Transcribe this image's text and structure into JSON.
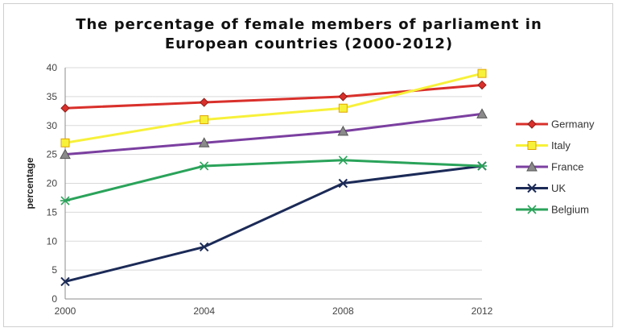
{
  "chart_data": {
    "type": "line",
    "title_line1": "The percentage of female members of parliament in",
    "title_line2": "European countries (2000-2012)",
    "xlabel": "",
    "ylabel": "percentage",
    "x": [
      "2000",
      "2004",
      "2008",
      "2012"
    ],
    "ylim": [
      0,
      40
    ],
    "yticks": [
      0,
      5,
      10,
      15,
      20,
      25,
      30,
      35,
      40
    ],
    "grid": true,
    "legend_position": "right",
    "series": [
      {
        "name": "Germany",
        "values": [
          33,
          34,
          35,
          37
        ],
        "color": "#d9302b",
        "marker": "diamond"
      },
      {
        "name": "Italy",
        "values": [
          27,
          31,
          33,
          39
        ],
        "color": "#f7f13a",
        "marker": "square"
      },
      {
        "name": "France",
        "values": [
          25,
          27,
          29,
          32
        ],
        "color": "#7b3fa0",
        "marker": "triangle"
      },
      {
        "name": "UK",
        "values": [
          3,
          9,
          20,
          23
        ],
        "color": "#1b2a57",
        "marker": "x"
      },
      {
        "name": "Belgium",
        "values": [
          17,
          23,
          24,
          23
        ],
        "color": "#2aa35a",
        "marker": "star"
      }
    ]
  }
}
